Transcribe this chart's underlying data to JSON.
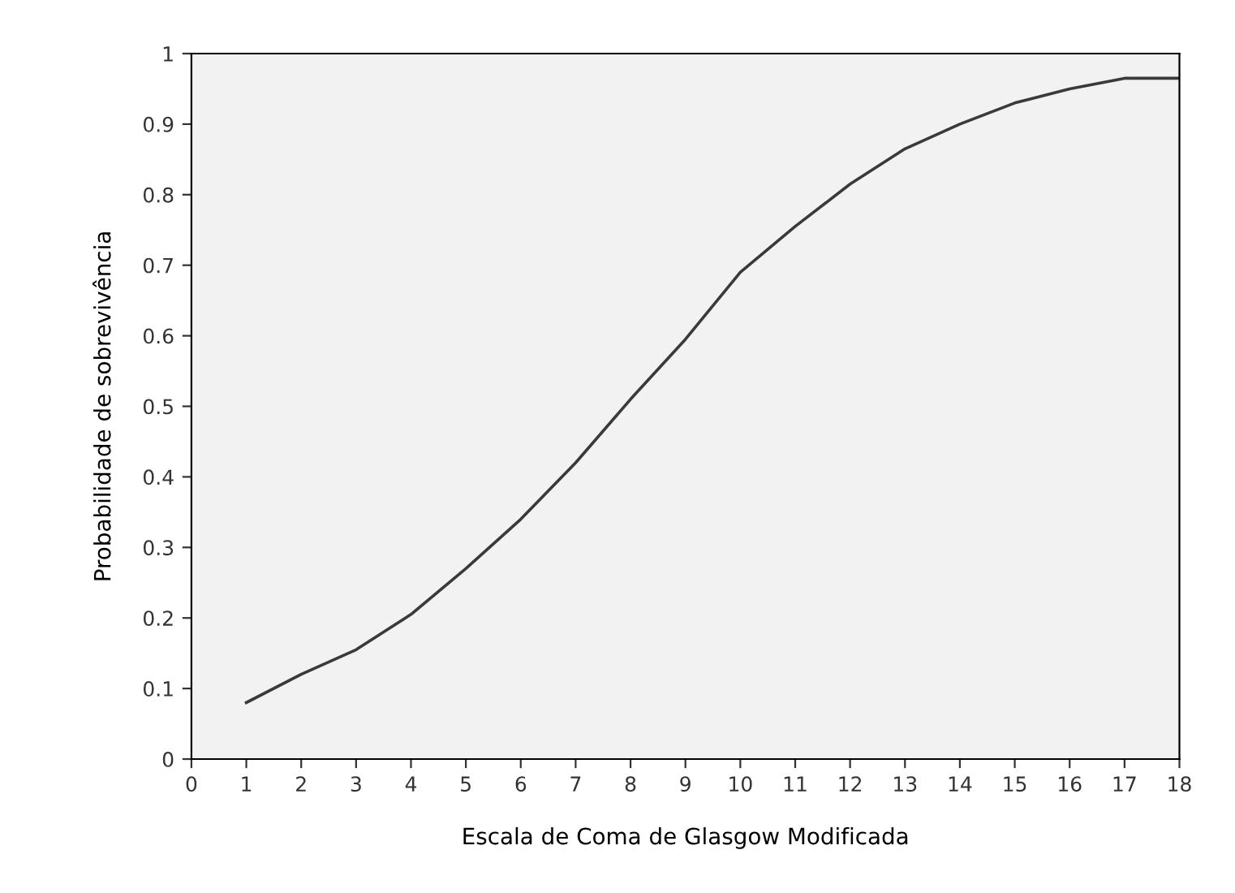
{
  "chart_data": {
    "type": "line",
    "xlabel": "Escala de Coma de Glasgow Modificada",
    "ylabel": "Probabilidade de sobrevivência",
    "x": [
      1,
      2,
      3,
      4,
      5,
      6,
      6.5,
      7,
      8,
      9,
      10,
      11,
      12,
      13,
      14,
      15,
      16,
      17,
      18
    ],
    "series": [
      {
        "color": "#3a3a3a",
        "values": [
          0.08,
          0.12,
          0.155,
          0.205,
          0.27,
          0.34,
          0.38,
          0.42,
          0.51,
          0.595,
          0.69,
          0.755,
          0.815,
          0.865,
          0.9,
          0.93,
          0.95,
          0.965,
          0.965
        ]
      }
    ],
    "xlim": [
      0,
      18
    ],
    "ylim": [
      0,
      1
    ],
    "xticks": [
      0,
      1,
      2,
      3,
      4,
      5,
      6,
      7,
      8,
      9,
      10,
      11,
      12,
      13,
      14,
      15,
      16,
      17,
      18
    ],
    "yticks": [
      0,
      0.1,
      0.2,
      0.3,
      0.4,
      0.5,
      0.6,
      0.7,
      0.8,
      0.9,
      1
    ],
    "grid": false,
    "legend": false,
    "marker": "none",
    "line_style": "solid"
  }
}
